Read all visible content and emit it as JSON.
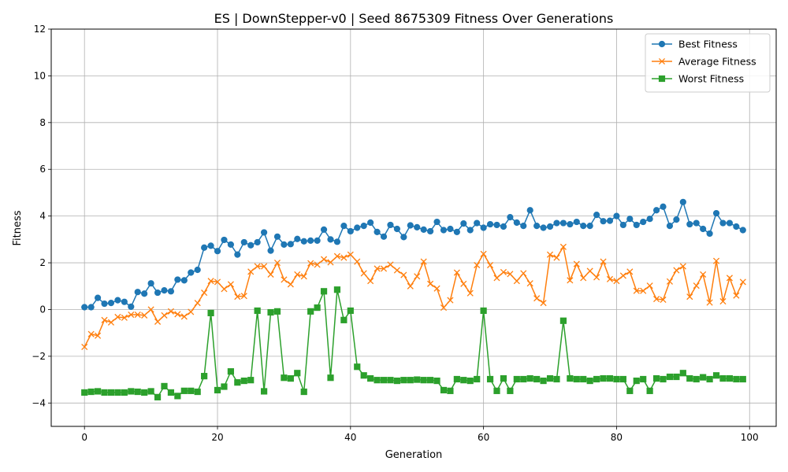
{
  "chart_data": {
    "type": "line",
    "title": "ES | DownStepper-v0 | Seed 8675309 Fitness Over Generations",
    "xlabel": "Generation",
    "ylabel": "Fitness",
    "xlim": [
      -5,
      104
    ],
    "ylim": [
      -5,
      12
    ],
    "xticks": [
      0,
      20,
      40,
      60,
      80,
      100
    ],
    "yticks": [
      -4,
      -2,
      0,
      2,
      4,
      6,
      8,
      10,
      12
    ],
    "xtick_labels": [
      "0",
      "20",
      "40",
      "60",
      "80",
      "100"
    ],
    "ytick_labels": [
      "−4",
      "−2",
      "0",
      "2",
      "4",
      "6",
      "8",
      "10",
      "12"
    ],
    "grid": true,
    "legend_position": "upper right",
    "series": [
      {
        "name": "Best Fitness",
        "color": "#1f77b4",
        "marker": "circle",
        "values": [
          0.1,
          0.1,
          0.5,
          0.25,
          0.28,
          0.4,
          0.33,
          0.12,
          0.75,
          0.68,
          1.12,
          0.72,
          0.82,
          0.78,
          1.28,
          1.25,
          1.58,
          1.7,
          2.65,
          2.73,
          2.5,
          2.98,
          2.78,
          2.35,
          2.88,
          2.75,
          2.88,
          3.3,
          2.52,
          3.12,
          2.78,
          2.8,
          3.02,
          2.92,
          2.95,
          2.95,
          3.42,
          3.0,
          2.9,
          3.58,
          3.35,
          3.5,
          3.58,
          3.72,
          3.32,
          3.12,
          3.62,
          3.45,
          3.1,
          3.6,
          3.52,
          3.42,
          3.35,
          3.75,
          3.4,
          3.45,
          3.32,
          3.68,
          3.4,
          3.7,
          3.5,
          3.65,
          3.62,
          3.55,
          3.95,
          3.72,
          3.58,
          4.25,
          3.58,
          3.5,
          3.55,
          3.7,
          3.7,
          3.65,
          3.75,
          3.58,
          3.58,
          4.05,
          3.78,
          3.8,
          4.0,
          3.62,
          3.88,
          3.62,
          3.75,
          3.88,
          4.25,
          4.4,
          3.58,
          3.85,
          4.6,
          3.65,
          3.7,
          3.45,
          3.25,
          4.12,
          3.7,
          3.7,
          3.55,
          3.4
        ]
      },
      {
        "name": "Average Fitness",
        "color": "#ff7f0e",
        "marker": "x",
        "values": [
          -1.6,
          -1.05,
          -1.12,
          -0.45,
          -0.55,
          -0.32,
          -0.35,
          -0.22,
          -0.22,
          -0.25,
          0.0,
          -0.52,
          -0.25,
          -0.08,
          -0.2,
          -0.3,
          -0.1,
          0.28,
          0.72,
          1.22,
          1.18,
          0.88,
          1.08,
          0.55,
          0.58,
          1.62,
          1.85,
          1.85,
          1.5,
          2.0,
          1.28,
          1.08,
          1.5,
          1.42,
          1.98,
          1.92,
          2.15,
          2.02,
          2.28,
          2.22,
          2.35,
          2.05,
          1.55,
          1.22,
          1.75,
          1.75,
          1.92,
          1.68,
          1.48,
          1.0,
          1.42,
          2.05,
          1.1,
          0.9,
          0.08,
          0.4,
          1.58,
          1.1,
          0.7,
          1.9,
          2.38,
          1.9,
          1.35,
          1.6,
          1.52,
          1.22,
          1.55,
          1.12,
          0.48,
          0.28,
          2.35,
          2.22,
          2.68,
          1.25,
          1.95,
          1.35,
          1.65,
          1.38,
          2.05,
          1.3,
          1.22,
          1.45,
          1.62,
          0.8,
          0.8,
          1.02,
          0.45,
          0.42,
          1.2,
          1.68,
          1.85,
          0.55,
          1.02,
          1.5,
          0.3,
          2.08,
          0.35,
          1.35,
          0.6,
          1.18
        ]
      },
      {
        "name": "Worst Fitness",
        "color": "#2ca02c",
        "marker": "square",
        "values": [
          -3.55,
          -3.52,
          -3.5,
          -3.55,
          -3.55,
          -3.55,
          -3.55,
          -3.5,
          -3.52,
          -3.55,
          -3.5,
          -3.75,
          -3.28,
          -3.55,
          -3.7,
          -3.48,
          -3.48,
          -3.52,
          -2.85,
          -0.15,
          -3.45,
          -3.3,
          -2.65,
          -3.12,
          -3.05,
          -3.02,
          -0.05,
          -3.5,
          -0.12,
          -0.08,
          -2.92,
          -2.95,
          -2.72,
          -3.52,
          -0.08,
          0.08,
          0.78,
          -2.92,
          0.85,
          -0.45,
          -0.05,
          -2.45,
          -2.82,
          -2.95,
          -3.02,
          -3.02,
          -3.02,
          -3.05,
          -3.02,
          -3.02,
          -3.0,
          -3.02,
          -3.02,
          -3.05,
          -3.45,
          -3.48,
          -2.98,
          -3.02,
          -3.05,
          -2.98,
          -0.05,
          -2.98,
          -3.48,
          -2.95,
          -3.48,
          -2.98,
          -2.98,
          -2.95,
          -2.98,
          -3.05,
          -2.95,
          -2.98,
          -0.48,
          -2.95,
          -2.98,
          -2.98,
          -3.05,
          -2.98,
          -2.95,
          -2.95,
          -2.98,
          -2.98,
          -3.48,
          -3.05,
          -2.98,
          -3.48,
          -2.95,
          -2.98,
          -2.88,
          -2.88,
          -2.72,
          -2.95,
          -2.98,
          -2.9,
          -2.98,
          -2.82,
          -2.95,
          -2.95,
          -2.98,
          -2.98
        ]
      }
    ]
  }
}
